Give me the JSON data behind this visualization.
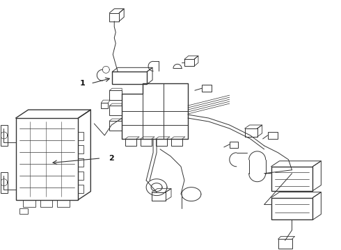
{
  "background_color": "#ffffff",
  "line_color": "#333333",
  "label_color": "#111111",
  "label_1": "1",
  "label_2": "2",
  "figsize": [
    4.9,
    3.6
  ],
  "dpi": 100
}
